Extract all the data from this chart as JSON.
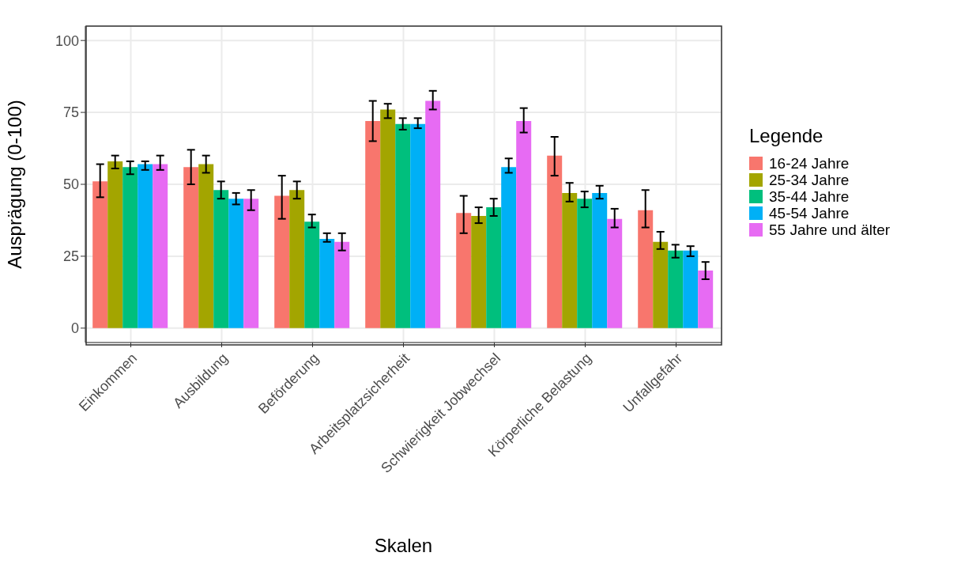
{
  "chart_data": {
    "type": "bar",
    "xlabel": "Skalen",
    "ylabel": "Ausprägung (0-100)",
    "legend_title": "Legende",
    "legend": "right",
    "grid": true,
    "categories": [
      "Einkommen",
      "Ausbildung",
      "Beförderung",
      "Arbeitsplatzsicherheit",
      "Schwierigkeit Jobwechsel",
      "Körperliche Belastung",
      "Unfallgefahr"
    ],
    "ylim": [
      -5,
      105
    ],
    "yticks": [
      0,
      25,
      50,
      75,
      100
    ],
    "series": [
      {
        "name": "16-24 Jahre",
        "color": "#f8766d",
        "values": [
          51,
          56,
          46,
          72,
          40,
          60,
          41
        ],
        "errors": [
          [
            45.5,
            57
          ],
          [
            50,
            62
          ],
          [
            38,
            53
          ],
          [
            65,
            79
          ],
          [
            33,
            46
          ],
          [
            53,
            66.5
          ],
          [
            35,
            48
          ]
        ]
      },
      {
        "name": "25-34 Jahre",
        "color": "#a3a500",
        "values": [
          58,
          57,
          48,
          76,
          39,
          47,
          30
        ],
        "errors": [
          [
            55.5,
            60
          ],
          [
            54,
            60
          ],
          [
            45,
            51
          ],
          [
            73,
            78
          ],
          [
            36.5,
            42
          ],
          [
            44,
            50.5
          ],
          [
            27.5,
            33.5
          ]
        ]
      },
      {
        "name": "35-44 Jahre",
        "color": "#00bf7d",
        "values": [
          56,
          48,
          37,
          71,
          42,
          45,
          27
        ],
        "errors": [
          [
            53.5,
            58
          ],
          [
            45,
            51
          ],
          [
            35,
            39.5
          ],
          [
            69,
            73
          ],
          [
            39,
            45
          ],
          [
            42,
            47.5
          ],
          [
            24.5,
            29
          ]
        ]
      },
      {
        "name": "45-54 Jahre",
        "color": "#00b0f6",
        "values": [
          57,
          45,
          31,
          71,
          56,
          47,
          27
        ],
        "errors": [
          [
            55,
            58
          ],
          [
            43,
            47
          ],
          [
            30,
            33
          ],
          [
            69.5,
            73
          ],
          [
            54,
            59
          ],
          [
            45,
            49.5
          ],
          [
            25,
            28.5
          ]
        ]
      },
      {
        "name": "55 Jahre und älter",
        "color": "#e76bf3",
        "values": [
          57,
          45,
          30,
          79,
          72,
          38,
          20
        ],
        "errors": [
          [
            55,
            60
          ],
          [
            41,
            48
          ],
          [
            27,
            33
          ],
          [
            76,
            82.5
          ],
          [
            68,
            76.5
          ],
          [
            35,
            41.5
          ],
          [
            17,
            23
          ]
        ]
      }
    ]
  }
}
